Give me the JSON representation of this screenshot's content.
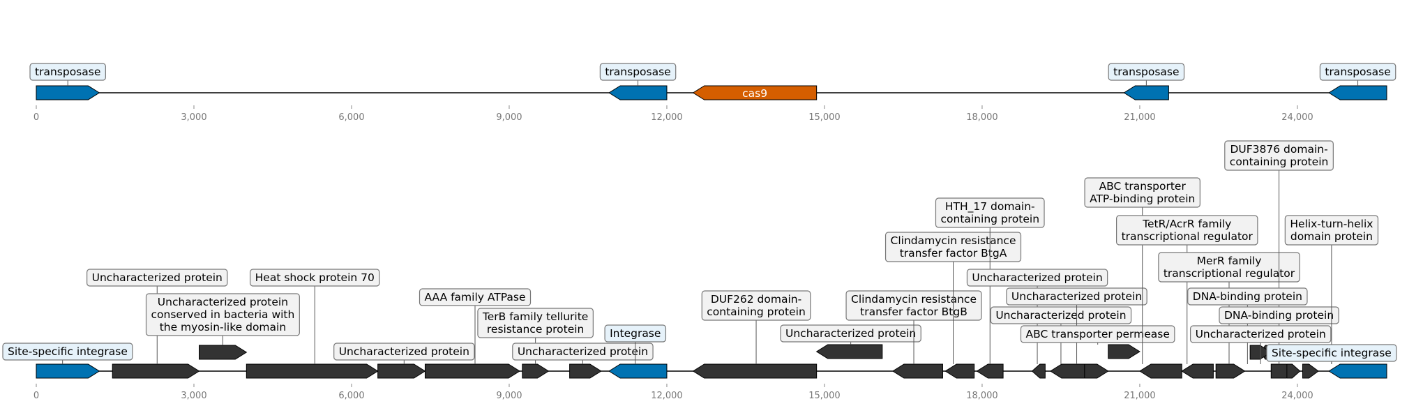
{
  "colors": {
    "transposase": "#0072B2",
    "cas9": "#D55E00",
    "other": "#333333",
    "label_blue_bg": "#e6f2fa",
    "label_grey_bg": "#f2f2f2",
    "axis_text": "#777777"
  },
  "axis_ticks": [
    "0",
    "3,000",
    "6,000",
    "9,000",
    "12,000",
    "15,000",
    "18,000",
    "21,000",
    "24,000"
  ],
  "tick_values": [
    0,
    3000,
    6000,
    9000,
    12000,
    15000,
    18000,
    21000,
    24000
  ],
  "track_extent": [
    0,
    25700
  ],
  "track1": {
    "genes": [
      {
        "name": "transposase",
        "start": 0,
        "end": 1200,
        "strand": 1,
        "type": "transposase",
        "label": "transposase"
      },
      {
        "name": "transposase",
        "start": 10900,
        "end": 12000,
        "strand": -1,
        "type": "transposase",
        "label": "transposase"
      },
      {
        "name": "cas9",
        "start": 12500,
        "end": 14850,
        "strand": -1,
        "type": "cas9",
        "label": "cas9"
      },
      {
        "name": "transposase",
        "start": 20700,
        "end": 21550,
        "strand": -1,
        "type": "transposase",
        "label": "transposase"
      },
      {
        "name": "transposase",
        "start": 24600,
        "end": 25700,
        "strand": -1,
        "type": "transposase",
        "label": "transposase"
      }
    ]
  },
  "track2": {
    "genes": [
      {
        "start": 0,
        "end": 1200,
        "strand": 1,
        "type": "blue",
        "label": "Site-specific integrase"
      },
      {
        "start": 1450,
        "end": 3100,
        "strand": 1,
        "type": "other",
        "label": "Uncharacterized protein"
      },
      {
        "start": 3100,
        "end": 4000,
        "strand": 1,
        "type": "other",
        "label": "Uncharacterized protein\nconserved in bacteria with\nthe myosin-like domain"
      },
      {
        "start": 4000,
        "end": 6500,
        "strand": 1,
        "type": "other",
        "label": "Heat shock protein 70"
      },
      {
        "start": 6500,
        "end": 7400,
        "strand": 1,
        "type": "other",
        "label": "Uncharacterized protein"
      },
      {
        "start": 7400,
        "end": 9200,
        "strand": 1,
        "type": "other",
        "label": "AAA family ATPase"
      },
      {
        "start": 9250,
        "end": 9750,
        "strand": 1,
        "type": "other",
        "label": "TerB family tellurite\nresistance protein"
      },
      {
        "start": 10150,
        "end": 10750,
        "strand": 1,
        "type": "other",
        "label": "Uncharacterized protein"
      },
      {
        "start": 10900,
        "end": 12000,
        "strand": -1,
        "type": "blue",
        "label": "Integrase"
      },
      {
        "start": 12500,
        "end": 14850,
        "strand": -1,
        "type": "other",
        "label": "DUF262 domain-\ncontaining protein"
      },
      {
        "start": 14850,
        "end": 16100,
        "strand": -1,
        "type": "other",
        "label": "Uncharacterized protein"
      },
      {
        "start": 16300,
        "end": 17250,
        "strand": -1,
        "type": "other",
        "label": "Clindamycin resistance\ntransfer factor BtgB"
      },
      {
        "start": 17300,
        "end": 17850,
        "strand": -1,
        "type": "other",
        "label": "Clindamycin resistance\ntransfer factor BtgA"
      },
      {
        "start": 17900,
        "end": 18400,
        "strand": -1,
        "type": "other",
        "label": "HTH_17 domain-\ncontaining protein"
      },
      {
        "start": 18950,
        "end": 19200,
        "strand": -1,
        "type": "other",
        "label": "Uncharacterized protein"
      },
      {
        "start": 19300,
        "end": 19950,
        "strand": -1,
        "type": "other",
        "label": "Uncharacterized protein"
      },
      {
        "start": 19950,
        "end": 20400,
        "strand": 1,
        "type": "other",
        "label": "Uncharacterized protein"
      },
      {
        "start": 20400,
        "end": 21000,
        "strand": 1,
        "type": "other",
        "label": "ABC transporter permease"
      },
      {
        "start": 21000,
        "end": 21800,
        "strand": -1,
        "type": "other",
        "label": "ABC transporter\nATP-binding protein"
      },
      {
        "start": 21800,
        "end": 22400,
        "strand": -1,
        "type": "other",
        "label": "TetR/AcrR family\ntranscriptional regulator"
      },
      {
        "start": 22450,
        "end": 23000,
        "strand": 1,
        "type": "other",
        "label": "MerR family\ntranscriptional regulator"
      },
      {
        "start": 23300,
        "end": 23450,
        "strand": -1,
        "type": "other",
        "label": "DUF3876 domain-\ncontaining protein"
      },
      {
        "start": 23100,
        "end": 23500,
        "strand": 1,
        "type": "other",
        "label": "DNA-binding protein"
      },
      {
        "start": 23500,
        "end": 24000,
        "strand": 1,
        "type": "other",
        "label": "DNA-binding protein"
      },
      {
        "start": 23800,
        "end": 24050,
        "strand": 1,
        "type": "other",
        "label": "Uncharacterized protein"
      },
      {
        "start": 24100,
        "end": 24400,
        "strand": 1,
        "type": "other",
        "label": "Helix-turn-helix\ndomain protein"
      },
      {
        "start": 24600,
        "end": 25700,
        "strand": -1,
        "type": "blue",
        "label": "Site-specific integrase"
      }
    ]
  }
}
